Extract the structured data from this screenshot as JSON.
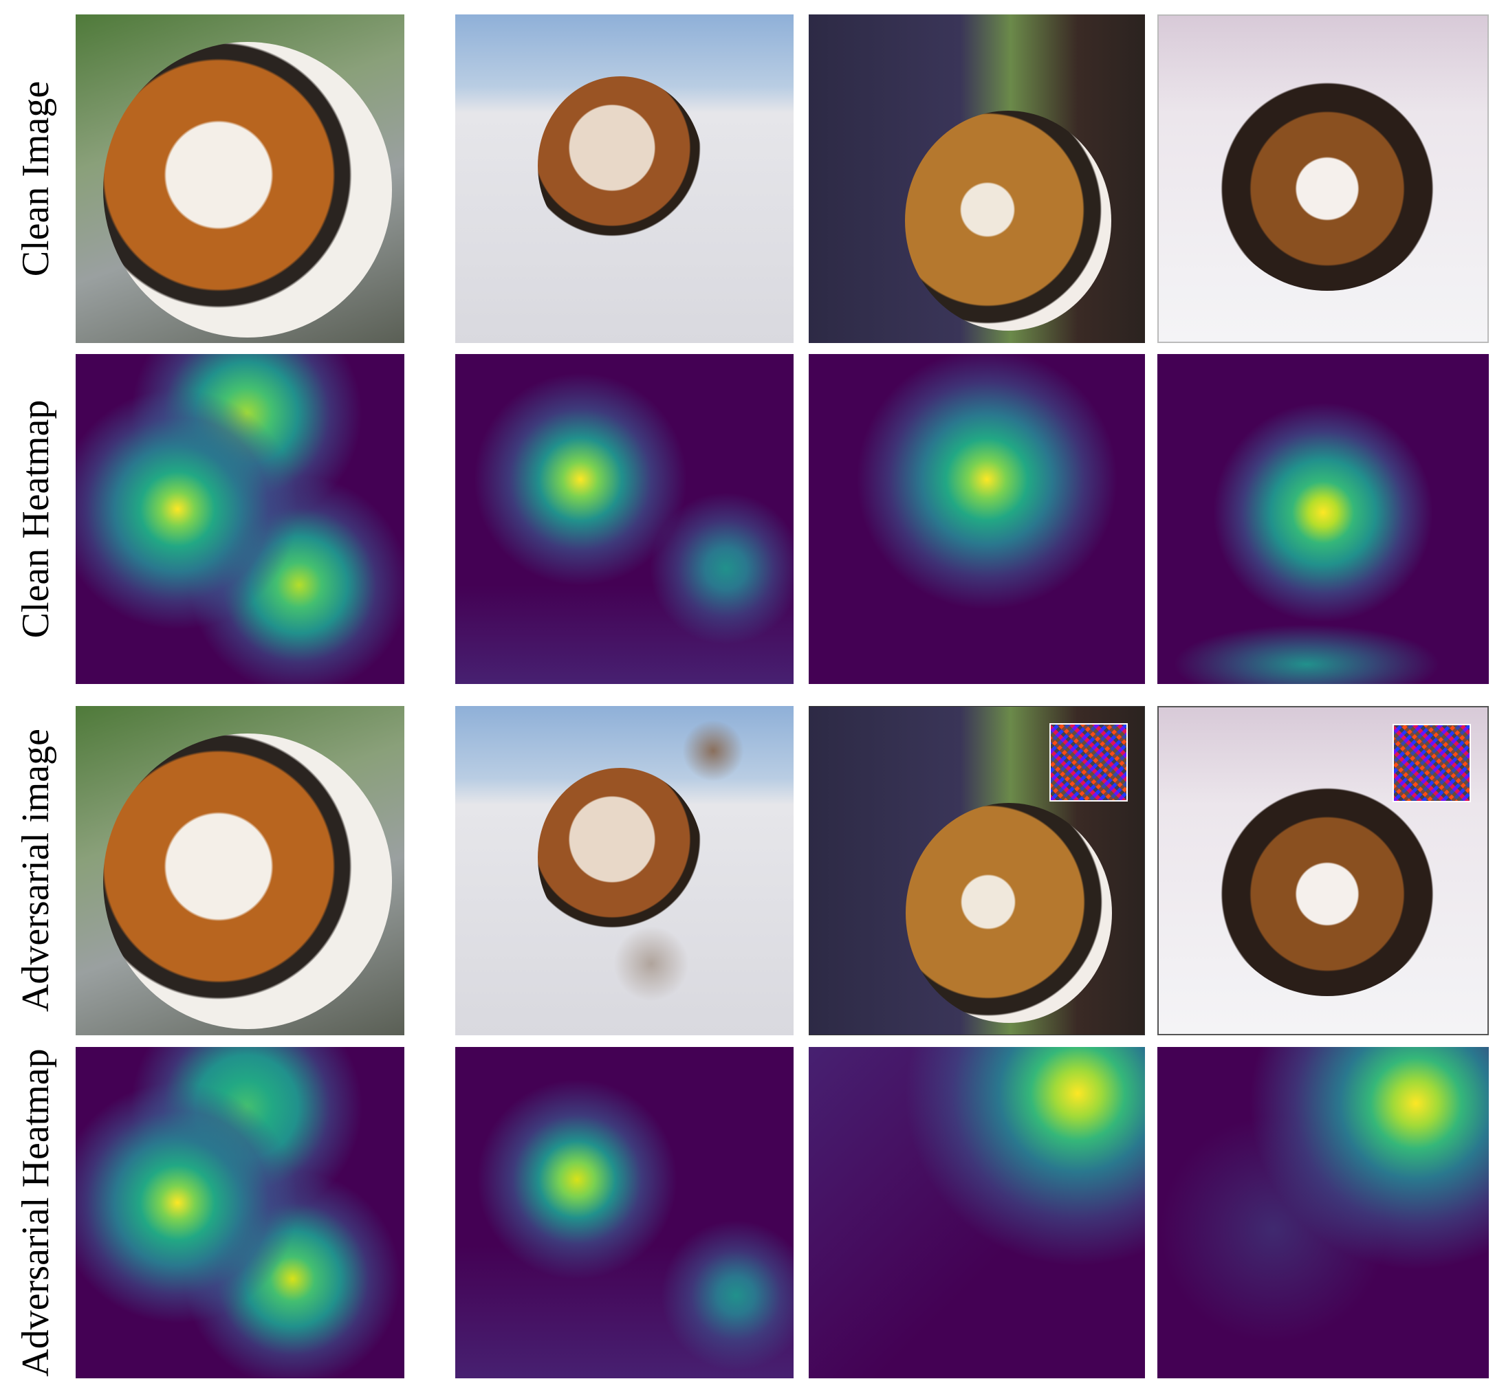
{
  "row_labels": [
    "Clean Image",
    "Clean Heatmap",
    "Adversarial image",
    "Adversarial Heatmap"
  ]
}
